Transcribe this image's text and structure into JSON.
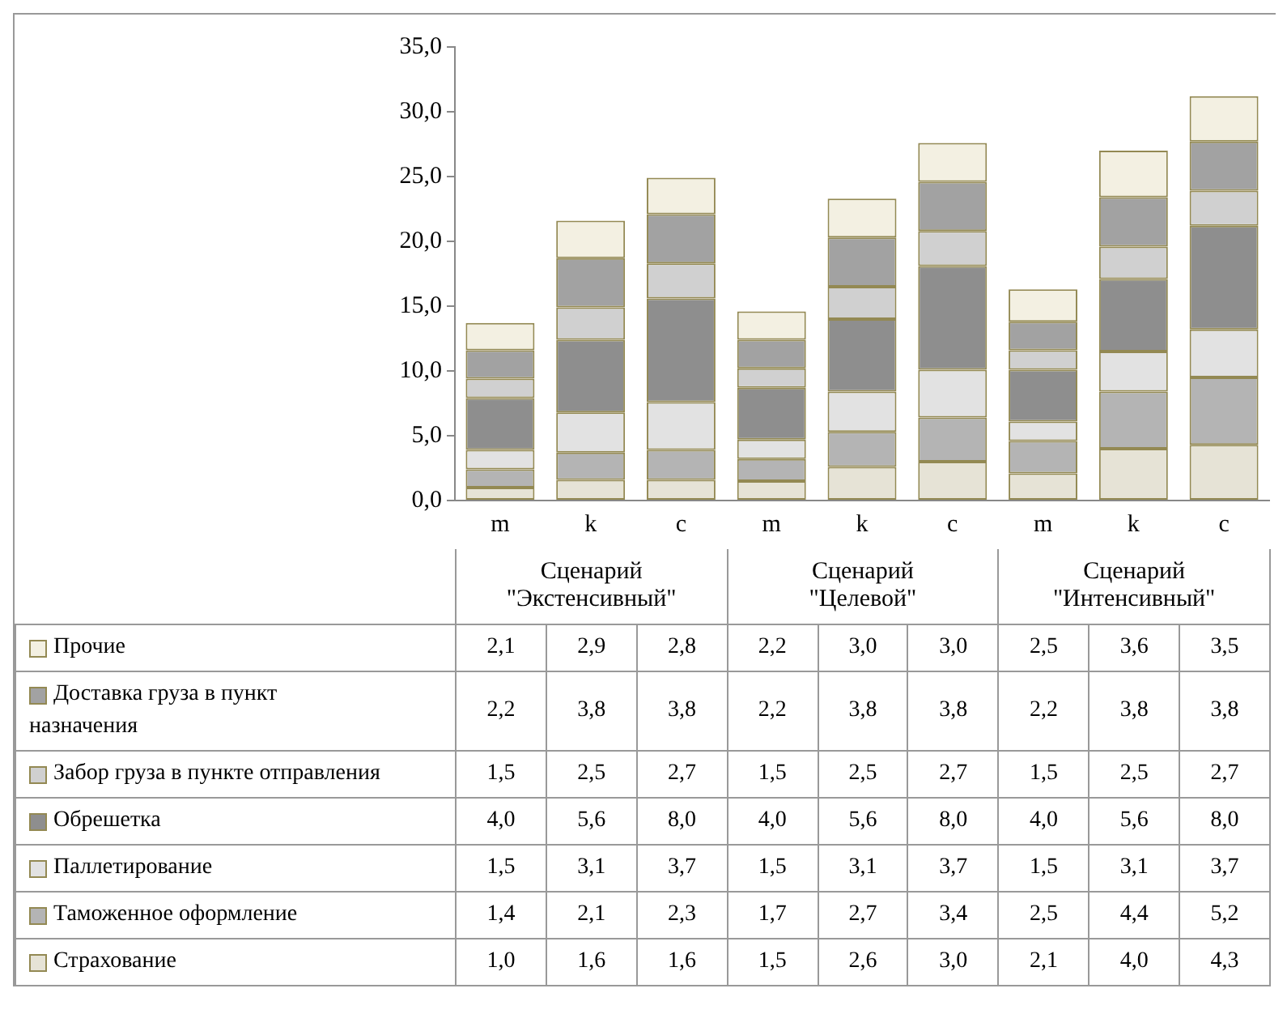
{
  "chart_data": {
    "type": "bar",
    "stacked": true,
    "categories": [
      "m",
      "k",
      "c",
      "m",
      "k",
      "c",
      "m",
      "k",
      "c"
    ],
    "annotations": [
      "Сценарий \"Экстенсивный\"",
      "Сценарий \"Целевой\"",
      "Сценарий \"Интенсивный\""
    ],
    "series": [
      {
        "name": "Страхование",
        "color": "#e6e3d6",
        "values": [
          1.0,
          1.6,
          1.6,
          1.5,
          2.6,
          3.0,
          2.1,
          4.0,
          4.3
        ],
        "value_labels": [
          "1,0",
          "1,6",
          "1,6",
          "1,5",
          "2,6",
          "3,0",
          "2,1",
          "4,0",
          "4,3"
        ]
      },
      {
        "name": "Таможенное оформление",
        "color": "#b4b4b4",
        "values": [
          1.4,
          2.1,
          2.3,
          1.7,
          2.7,
          3.4,
          2.5,
          4.4,
          5.2
        ],
        "value_labels": [
          "1,4",
          "2,1",
          "2,3",
          "1,7",
          "2,7",
          "3,4",
          "2,5",
          "4,4",
          "5,2"
        ]
      },
      {
        "name": "Паллетирование",
        "color": "#e2e2e2",
        "values": [
          1.5,
          3.1,
          3.7,
          1.5,
          3.1,
          3.7,
          1.5,
          3.1,
          3.7
        ],
        "value_labels": [
          "1,5",
          "3,1",
          "3,7",
          "1,5",
          "3,1",
          "3,7",
          "1,5",
          "3,1",
          "3,7"
        ]
      },
      {
        "name": "Обрешетка",
        "color": "#8e8e8e",
        "values": [
          4.0,
          5.6,
          8.0,
          4.0,
          5.6,
          8.0,
          4.0,
          5.6,
          8.0
        ],
        "value_labels": [
          "4,0",
          "5,6",
          "8,0",
          "4,0",
          "5,6",
          "8,0",
          "4,0",
          "5,6",
          "8,0"
        ]
      },
      {
        "name": "Забор груза в пункте отправления",
        "color": "#d0d0d0",
        "values": [
          1.5,
          2.5,
          2.7,
          1.5,
          2.5,
          2.7,
          1.5,
          2.5,
          2.7
        ],
        "value_labels": [
          "1,5",
          "2,5",
          "2,7",
          "1,5",
          "2,5",
          "2,7",
          "1,5",
          "2,5",
          "2,7"
        ]
      },
      {
        "name": "Доставка груза в пункт назначения",
        "color": "#a2a2a2",
        "values": [
          2.2,
          3.8,
          3.8,
          2.2,
          3.8,
          3.8,
          2.2,
          3.8,
          3.8
        ],
        "value_labels": [
          "2,2",
          "3,8",
          "3,8",
          "2,2",
          "3,8",
          "3,8",
          "2,2",
          "3,8",
          "3,8"
        ]
      },
      {
        "name": "Прочие",
        "color": "#f3f0e2",
        "values": [
          2.1,
          2.9,
          2.8,
          2.2,
          3.0,
          3.0,
          2.5,
          3.6,
          3.5
        ],
        "value_labels": [
          "2,1",
          "2,9",
          "2,8",
          "2,2",
          "3,0",
          "3,0",
          "2,5",
          "3,6",
          "3,5"
        ]
      }
    ],
    "ylim": [
      0,
      35
    ],
    "yticks": [
      {
        "value": 0,
        "label": "0,0"
      },
      {
        "value": 5,
        "label": "5,0"
      },
      {
        "value": 10,
        "label": "10,0"
      },
      {
        "value": 15,
        "label": "15,0"
      },
      {
        "value": 20,
        "label": "20,0"
      },
      {
        "value": 25,
        "label": "25,0"
      },
      {
        "value": 30,
        "label": "30,0"
      },
      {
        "value": 35,
        "label": "35,0"
      }
    ],
    "grid": false,
    "legend": "bottom"
  }
}
